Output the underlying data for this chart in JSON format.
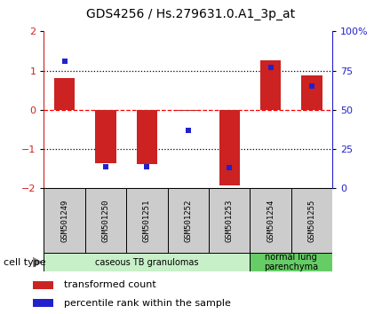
{
  "title": "GDS4256 / Hs.279631.0.A1_3p_at",
  "samples": [
    "GSM501249",
    "GSM501250",
    "GSM501251",
    "GSM501252",
    "GSM501253",
    "GSM501254",
    "GSM501255"
  ],
  "transformed_count": [
    0.82,
    -1.35,
    -1.38,
    -0.03,
    -1.92,
    1.27,
    0.87
  ],
  "percentile_rank": [
    0.81,
    0.14,
    0.14,
    0.37,
    0.13,
    0.77,
    0.65
  ],
  "ylim": [
    -2,
    2
  ],
  "yticks_left": [
    -2,
    -1,
    0,
    1,
    2
  ],
  "yticks_right_vals": [
    0,
    25,
    50,
    75,
    100
  ],
  "yticks_right_labels": [
    "0",
    "25",
    "50",
    "75",
    "100%"
  ],
  "hlines_dotted": [
    -1,
    1
  ],
  "hline_dashed": 0,
  "bar_color": "#cc2222",
  "dot_color": "#2222cc",
  "bar_width": 0.5,
  "groups": [
    {
      "label": "caseous TB granulomas",
      "indices": [
        0,
        1,
        2,
        3,
        4
      ],
      "color": "#c8f0c8"
    },
    {
      "label": "normal lung\nparenchyma",
      "indices": [
        5,
        6
      ],
      "color": "#66cc66"
    }
  ],
  "cell_type_label": "cell type",
  "legend_items": [
    {
      "color": "#cc2222",
      "label": "transformed count"
    },
    {
      "color": "#2222cc",
      "label": "percentile rank within the sample"
    }
  ],
  "bg_color": "#ffffff",
  "plot_bg": "#ffffff",
  "tick_color_left": "#cc2222",
  "tick_color_right": "#2222cc",
  "sample_box_color": "#cccccc",
  "figsize": [
    4.3,
    3.54
  ],
  "dpi": 100
}
